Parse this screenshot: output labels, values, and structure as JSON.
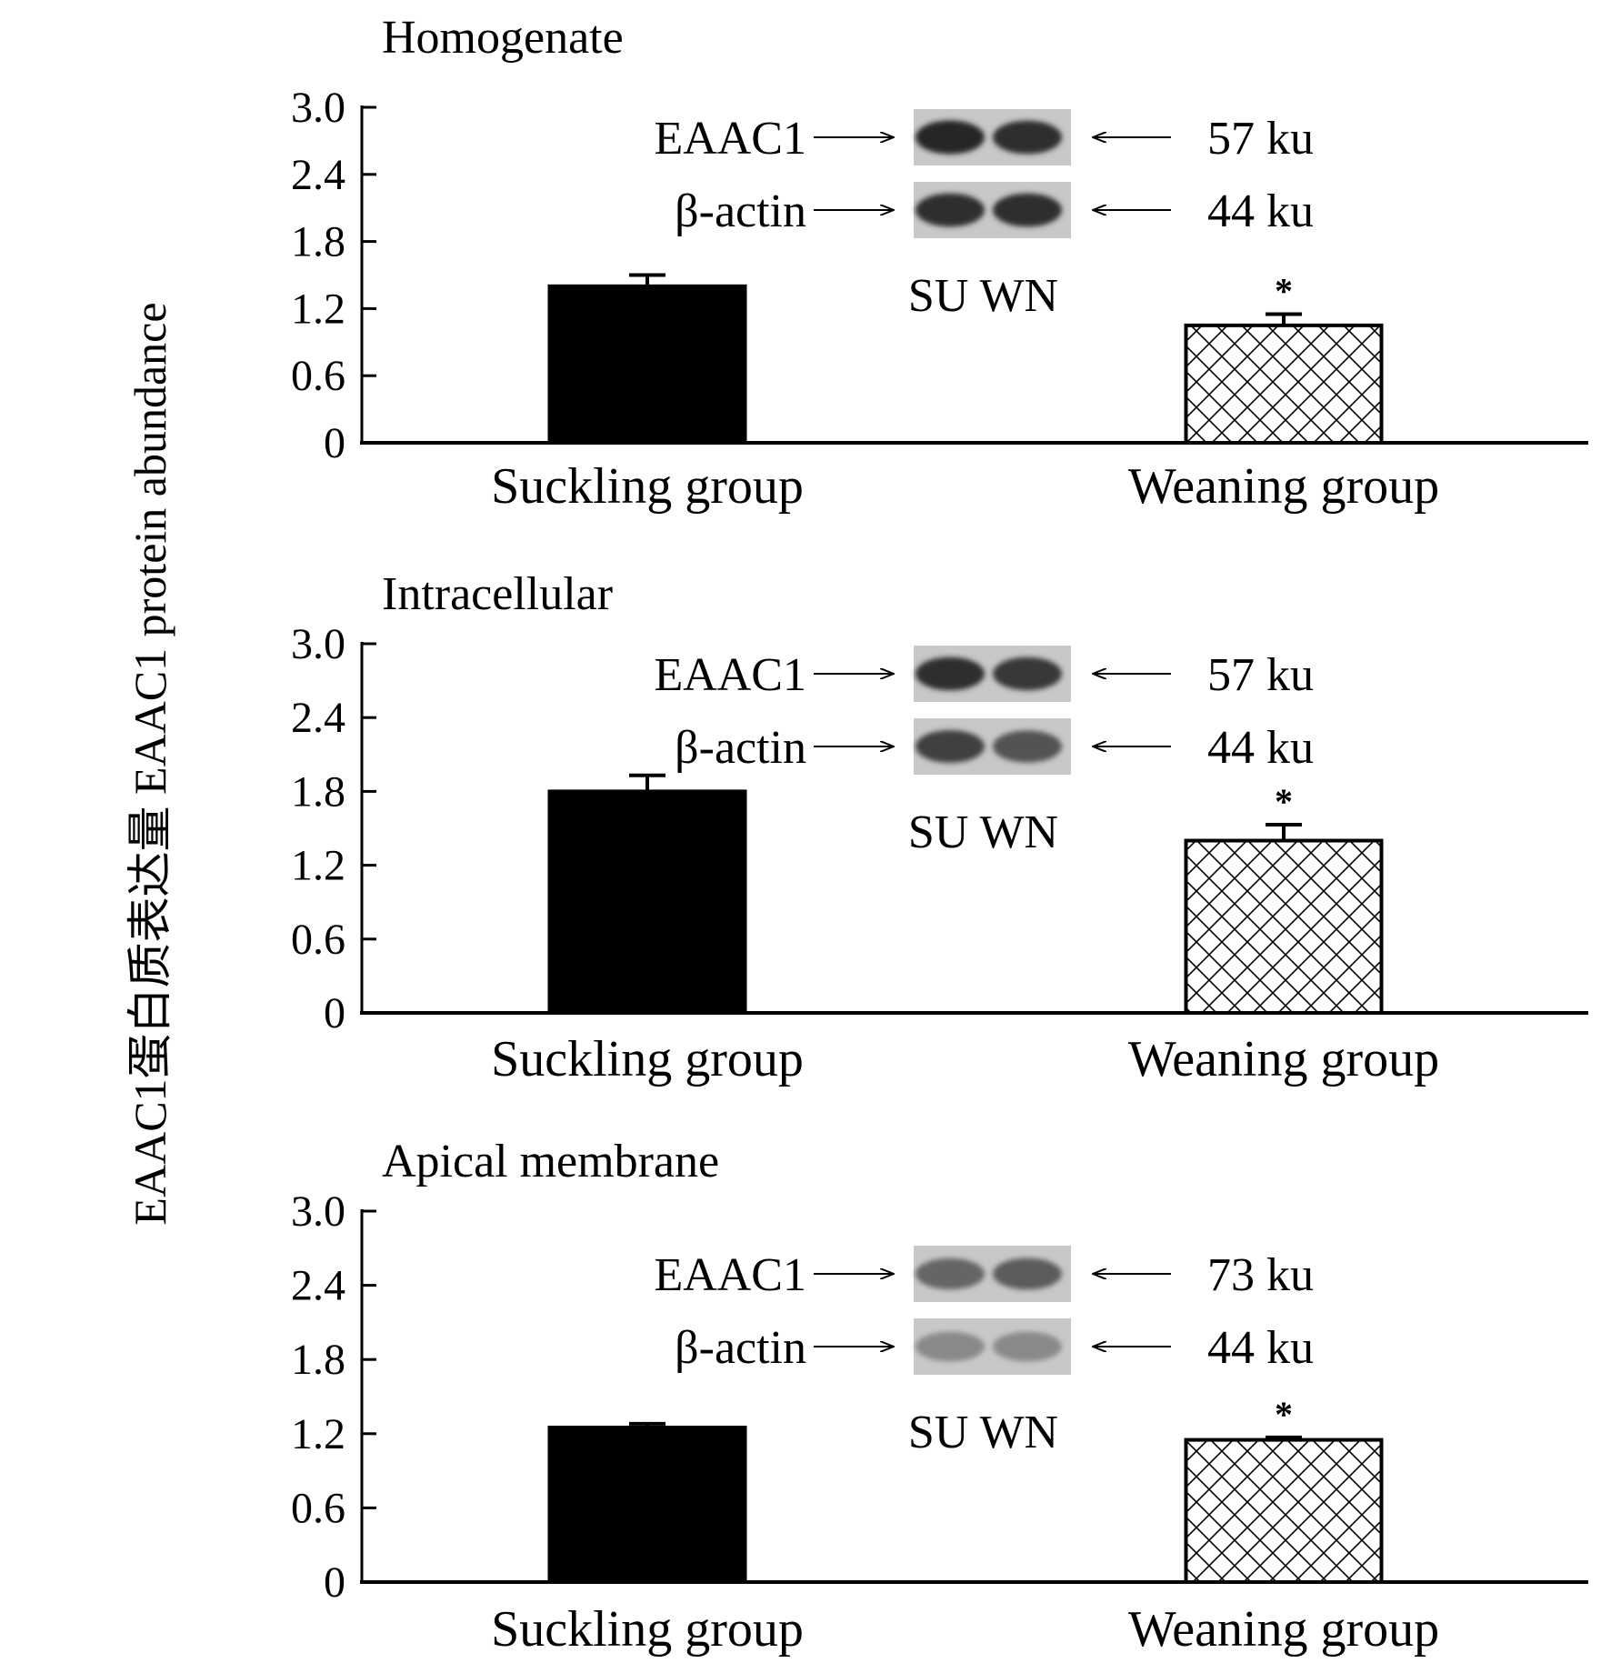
{
  "y_axis_label": "EAAC1蛋白质表达量 EAAC1 protein abundance",
  "colors": {
    "suckling_fill": "#000000",
    "weaning_fill": "#ffffff",
    "weaning_pattern": "crosshatch",
    "blot_band": "#2a2a2a"
  },
  "chart_data": [
    {
      "type": "bar",
      "title": "Homogenate",
      "categories": [
        "Suckling group",
        "Weaning group"
      ],
      "values": [
        1.4,
        1.05
      ],
      "errors": [
        0.1,
        0.1
      ],
      "significance": [
        "",
        "*"
      ],
      "ylim": [
        0,
        3.0
      ],
      "yticks": [
        "0",
        "0.6",
        "1.2",
        "1.8",
        "2.4",
        "3.0"
      ],
      "blot": {
        "rows": [
          {
            "protein": "EAAC1",
            "size": "57 ku",
            "intensity": [
              0.9,
              0.85
            ]
          },
          {
            "protein": "β-actin",
            "size": "44 ku",
            "intensity": [
              0.85,
              0.85
            ]
          }
        ],
        "lanes": "SU WN"
      }
    },
    {
      "type": "bar",
      "title": "Intracellular",
      "categories": [
        "Suckling group",
        "Weaning group"
      ],
      "values": [
        1.8,
        1.4
      ],
      "errors": [
        0.13,
        0.13
      ],
      "significance": [
        "",
        "*"
      ],
      "ylim": [
        0,
        3.0
      ],
      "yticks": [
        "0",
        "0.6",
        "1.2",
        "1.8",
        "2.4",
        "3.0"
      ],
      "blot": {
        "rows": [
          {
            "protein": "EAAC1",
            "size": "57 ku",
            "intensity": [
              0.85,
              0.8
            ]
          },
          {
            "protein": "β-actin",
            "size": "44 ku",
            "intensity": [
              0.75,
              0.65
            ]
          }
        ],
        "lanes": "SU WN"
      }
    },
    {
      "type": "bar",
      "title": "Apical membrane",
      "categories": [
        "Suckling group",
        "Weaning group"
      ],
      "values": [
        1.25,
        1.15
      ],
      "errors": [
        0.03,
        0.02
      ],
      "significance": [
        "",
        "*"
      ],
      "ylim": [
        0,
        3.0
      ],
      "yticks": [
        "0",
        "0.6",
        "1.2",
        "1.8",
        "2.4",
        "3.0"
      ],
      "blot": {
        "rows": [
          {
            "protein": "EAAC1",
            "size": "73 ku",
            "intensity": [
              0.55,
              0.6
            ]
          },
          {
            "protein": "β-actin",
            "size": "44 ku",
            "intensity": [
              0.35,
              0.35
            ]
          }
        ],
        "lanes": "SU WN"
      }
    }
  ]
}
